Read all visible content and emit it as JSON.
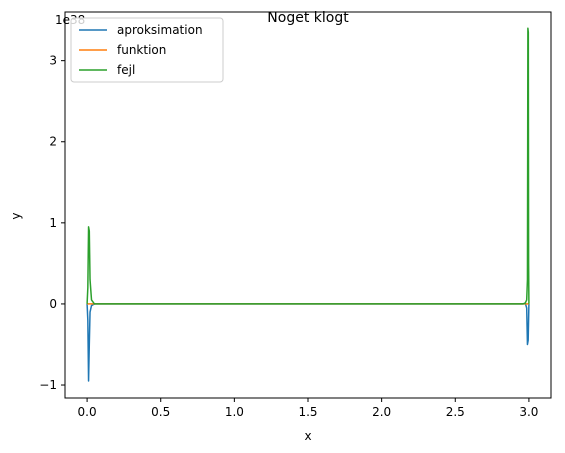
{
  "chart_data": {
    "type": "line",
    "title": "Noget klogt",
    "xlabel": "x",
    "ylabel": "y",
    "y_scale_label": "1e38",
    "xlim": [
      -0.15,
      3.15
    ],
    "ylim": [
      -1.16,
      3.6
    ],
    "xticks": [
      0.0,
      0.5,
      1.0,
      1.5,
      2.0,
      2.5,
      3.0
    ],
    "xtick_labels": [
      "0.0",
      "0.5",
      "1.0",
      "1.5",
      "2.0",
      "2.5",
      "3.0"
    ],
    "yticks": [
      -1,
      0,
      1,
      2,
      3
    ],
    "ytick_labels": [
      "−1",
      "0",
      "1",
      "2",
      "3"
    ],
    "grid": false,
    "legend_position": "top-left",
    "series": [
      {
        "name": "aproksimation",
        "color": "#1f77b4",
        "x": [
          0.0,
          0.005,
          0.01,
          0.015,
          0.02,
          0.03,
          0.05,
          0.1,
          1.0,
          2.0,
          2.9,
          2.96,
          2.975,
          2.985,
          2.99,
          2.995,
          3.0
        ],
        "y": [
          0.0,
          -0.2,
          -0.95,
          -0.5,
          -0.1,
          -0.02,
          0.0,
          0.0,
          0.0,
          0.0,
          0.0,
          0.0,
          0.01,
          -0.05,
          -0.5,
          -0.45,
          0.0
        ]
      },
      {
        "name": "funktion",
        "color": "#ff7f0e",
        "x": [
          0.0,
          3.0
        ],
        "y": [
          0.0,
          0.0
        ]
      },
      {
        "name": "fejl",
        "color": "#2ca02c",
        "x": [
          0.0,
          0.005,
          0.01,
          0.015,
          0.02,
          0.03,
          0.05,
          0.1,
          1.0,
          2.0,
          2.9,
          2.96,
          2.975,
          2.985,
          2.99,
          2.993,
          2.996,
          2.998,
          3.0
        ],
        "y": [
          0.0,
          0.2,
          0.95,
          0.9,
          0.3,
          0.05,
          0.0,
          0.0,
          0.0,
          0.0,
          0.0,
          0.0,
          0.01,
          0.05,
          0.3,
          3.4,
          3.35,
          0.5,
          0.0
        ]
      }
    ]
  }
}
